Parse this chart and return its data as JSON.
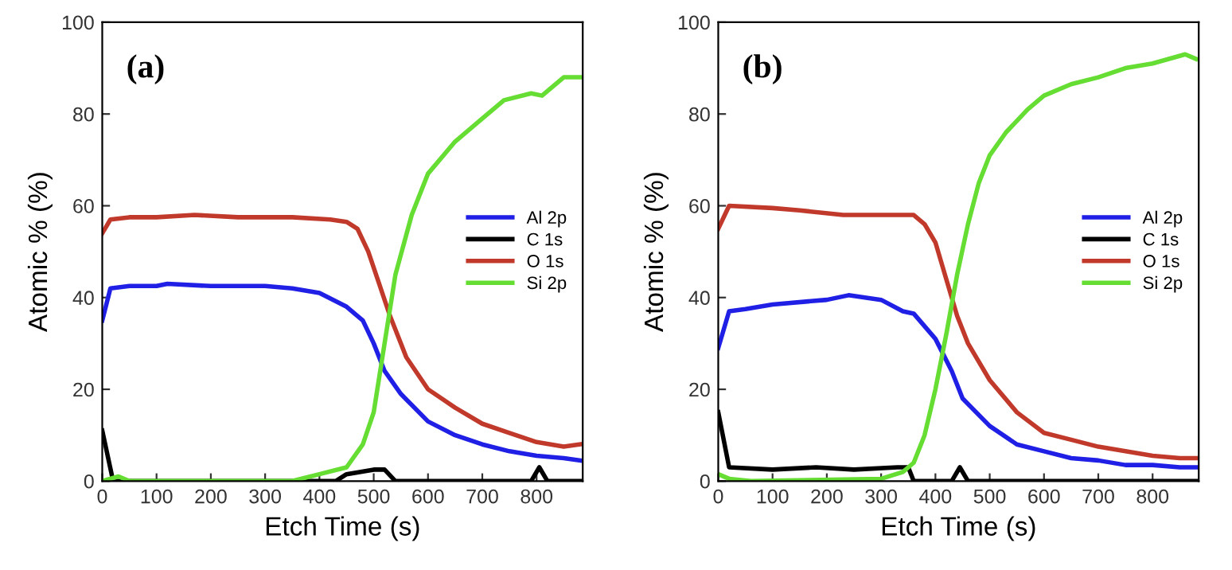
{
  "chart_data": [
    {
      "type": "line",
      "xlabel": "Etch Time (s)",
      "ylabel": "Atomic % (%)",
      "annotations": [
        "(a)"
      ],
      "xlim": [
        0,
        885
      ],
      "xticks": [
        0,
        100,
        200,
        300,
        400,
        500,
        600,
        700,
        800
      ],
      "ylim": [
        0,
        100
      ],
      "yticks": [
        0,
        20,
        40,
        60,
        80,
        100
      ],
      "legend": "center right",
      "grid": false,
      "marker": "none",
      "line_style": "solid",
      "series": [
        {
          "name": "Al 2p",
          "color": "#1f1fe6",
          "x": [
            0,
            15,
            50,
            100,
            120,
            200,
            300,
            350,
            400,
            450,
            480,
            500,
            520,
            550,
            600,
            650,
            700,
            750,
            800,
            850,
            880
          ],
          "values": [
            35,
            42,
            42.5,
            42.5,
            43,
            42.5,
            42.5,
            42,
            41,
            38,
            35,
            30,
            24,
            19,
            13,
            10,
            8,
            6.5,
            5.5,
            5,
            4.5
          ]
        },
        {
          "name": "C 1s",
          "color": "#000000",
          "x": [
            0,
            20,
            430,
            450,
            500,
            520,
            540,
            790,
            805,
            820,
            880
          ],
          "values": [
            11,
            0,
            0,
            1.5,
            2.5,
            2.5,
            0,
            0,
            3,
            0,
            0
          ]
        },
        {
          "name": "O 1s",
          "color": "#c0392b",
          "x": [
            0,
            15,
            50,
            100,
            170,
            250,
            350,
            420,
            450,
            470,
            490,
            510,
            530,
            560,
            600,
            650,
            700,
            750,
            800,
            850,
            880
          ],
          "values": [
            54,
            57,
            57.5,
            57.5,
            58,
            57.5,
            57.5,
            57,
            56.5,
            55,
            50,
            43,
            36,
            27,
            20,
            16,
            12.5,
            10.5,
            8.5,
            7.5,
            8
          ]
        },
        {
          "name": "Si 2p",
          "color": "#66dd33",
          "x": [
            0,
            30,
            50,
            350,
            400,
            450,
            480,
            500,
            520,
            540,
            570,
            600,
            650,
            700,
            740,
            790,
            810,
            840,
            850,
            880
          ],
          "values": [
            0,
            1,
            0,
            0,
            1.5,
            3,
            8,
            15,
            30,
            45,
            58,
            67,
            74,
            79,
            83,
            84.5,
            84,
            87,
            88,
            88
          ]
        }
      ]
    },
    {
      "type": "line",
      "xlabel": "Etch Time (s)",
      "ylabel": "Atomic % (%)",
      "annotations": [
        "(b)"
      ],
      "xlim": [
        0,
        885
      ],
      "xticks": [
        0,
        100,
        200,
        300,
        400,
        500,
        600,
        700,
        800
      ],
      "ylim": [
        0,
        100
      ],
      "yticks": [
        0,
        20,
        40,
        60,
        80,
        100
      ],
      "legend": "center right",
      "grid": false,
      "marker": "none",
      "line_style": "solid",
      "series": [
        {
          "name": "Al 2p",
          "color": "#1f1fe6",
          "x": [
            0,
            20,
            50,
            100,
            200,
            240,
            300,
            340,
            360,
            400,
            430,
            450,
            500,
            550,
            600,
            650,
            700,
            750,
            800,
            850,
            880
          ],
          "values": [
            29,
            37,
            37.5,
            38.5,
            39.5,
            40.5,
            39.5,
            37,
            36.5,
            31,
            24,
            18,
            12,
            8,
            6.5,
            5,
            4.5,
            3.5,
            3.5,
            3,
            3
          ]
        },
        {
          "name": "C 1s",
          "color": "#000000",
          "x": [
            0,
            20,
            100,
            180,
            250,
            330,
            350,
            360,
            430,
            445,
            460,
            880
          ],
          "values": [
            15,
            3,
            2.5,
            3,
            2.5,
            3,
            3,
            0,
            0,
            3,
            0,
            0
          ]
        },
        {
          "name": "O 1s",
          "color": "#c0392b",
          "x": [
            0,
            20,
            100,
            150,
            230,
            300,
            360,
            380,
            400,
            420,
            440,
            460,
            500,
            550,
            600,
            650,
            700,
            750,
            800,
            850,
            880
          ],
          "values": [
            55,
            60,
            59.5,
            59,
            58,
            58,
            58,
            56,
            52,
            44,
            36,
            30,
            22,
            15,
            10.5,
            9,
            7.5,
            6.5,
            5.5,
            5,
            5
          ]
        },
        {
          "name": "Si 2p",
          "color": "#66dd33",
          "x": [
            0,
            20,
            60,
            300,
            340,
            360,
            380,
            400,
            420,
            440,
            460,
            480,
            500,
            530,
            570,
            600,
            650,
            700,
            750,
            800,
            860,
            880
          ],
          "values": [
            1.5,
            0.5,
            0,
            0.5,
            2,
            4,
            10,
            20,
            32,
            45,
            56,
            65,
            71,
            76,
            81,
            84,
            86.5,
            88,
            90,
            91,
            93,
            92
          ]
        }
      ]
    }
  ]
}
